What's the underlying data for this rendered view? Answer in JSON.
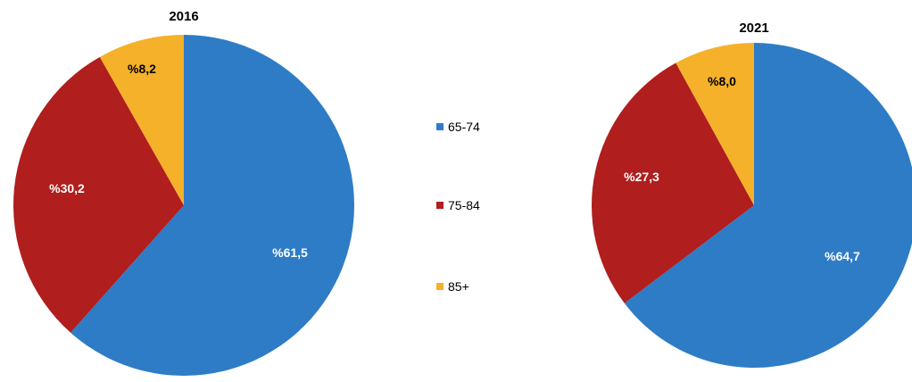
{
  "chart_data": [
    {
      "type": "pie",
      "title": "2016",
      "categories": [
        "65-74",
        "75-84",
        "85+"
      ],
      "values": [
        61.5,
        30.2,
        8.2
      ],
      "labels": [
        "%61,5",
        "%30,2",
        "%8,2"
      ],
      "colors": [
        "#2E7CC6",
        "#B01E1E",
        "#F5B12A"
      ],
      "start": "12 o'clock",
      "direction": "clockwise"
    },
    {
      "type": "pie",
      "title": "2021",
      "categories": [
        "65-74",
        "75-84",
        "85+"
      ],
      "values": [
        64.7,
        27.3,
        8.0
      ],
      "labels": [
        "%64,7",
        "%27,3",
        "%8,0"
      ],
      "colors": [
        "#2E7CC6",
        "#B01E1E",
        "#F5B12A"
      ],
      "start": "12 o'clock",
      "direction": "clockwise"
    }
  ],
  "legend": {
    "placement": "center",
    "items": [
      {
        "label": "65-74",
        "color": "#2E7CC6"
      },
      {
        "label": "75-84",
        "color": "#B01E1E"
      },
      {
        "label": "85+",
        "color": "#F5B12A"
      }
    ]
  }
}
